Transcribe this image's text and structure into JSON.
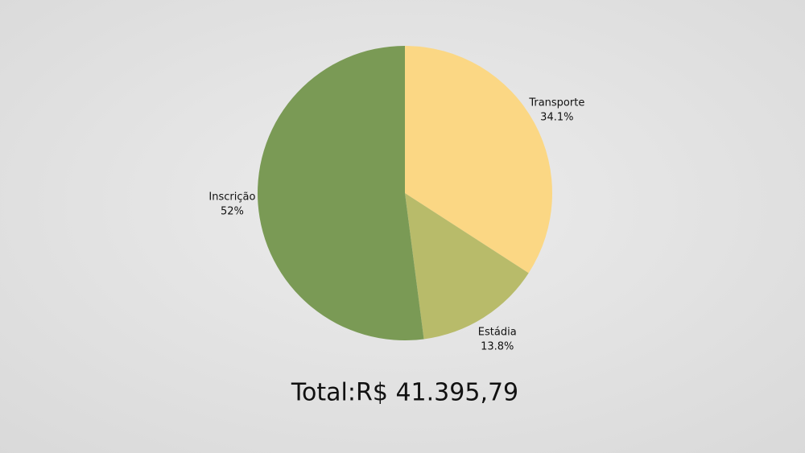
{
  "chart_data": {
    "type": "pie",
    "categories": [
      "Transporte",
      "Estádia",
      "Inscrição"
    ],
    "values": [
      34.1,
      13.8,
      52
    ],
    "value_labels": [
      "34.1%",
      "13.8%",
      "52%"
    ],
    "colors": [
      "#fbd784",
      "#b8bb6a",
      "#7a9a55"
    ],
    "annotation": "Total:R$ 41.395,79"
  }
}
